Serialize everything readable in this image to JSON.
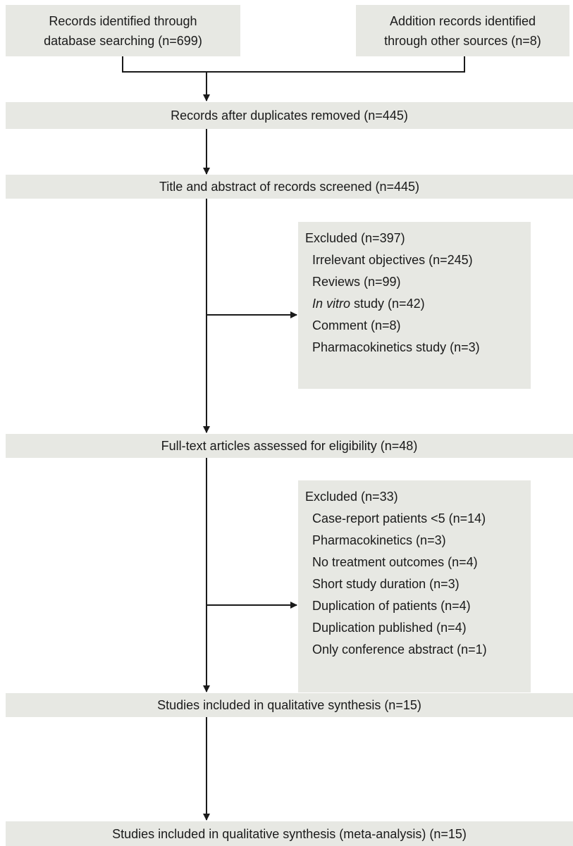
{
  "boxes": {
    "database_search": {
      "lines": [
        "Records identified through",
        "database searching (n=699)"
      ]
    },
    "other_sources": {
      "lines": [
        "Addition records identified",
        "through other sources (n=8)"
      ]
    },
    "duplicates_removed": {
      "text": "Records after duplicates removed (n=445)"
    },
    "screened": {
      "text": "Title and abstract of records screened (n=445)"
    },
    "full_text": {
      "text": "Full-text articles assessed for eligibility (n=48)"
    },
    "qualitative": {
      "text": "Studies included in qualitative synthesis (n=15)"
    },
    "meta_analysis": {
      "text": "Studies included in qualitative synthesis (meta-analysis) (n=15)"
    }
  },
  "excluded_1": {
    "heading": "Excluded (n=397)",
    "items": [
      {
        "text": "Irrelevant objectives (n=245)"
      },
      {
        "text": "Reviews (n=99)"
      },
      {
        "italic": "In vitro",
        "text": " study (n=42)"
      },
      {
        "text": "Comment (n=8)"
      },
      {
        "text": "Pharmacokinetics study (n=3)"
      }
    ]
  },
  "excluded_2": {
    "heading": "Excluded (n=33)",
    "items": [
      {
        "text": "Case-report patients <5 (n=14)"
      },
      {
        "text": "Pharmacokinetics (n=3)"
      },
      {
        "text": "No treatment outcomes (n=4)"
      },
      {
        "text": "Short study duration (n=3)"
      },
      {
        "text": "Duplication of patients (n=4)"
      },
      {
        "text": "Duplication published (n=4)"
      },
      {
        "text": "Only conference abstract (n=1)"
      }
    ]
  },
  "colors": {
    "box_fill": "#e7e8e3",
    "line": "#1a1a1a",
    "text": "#1a1a1a"
  }
}
